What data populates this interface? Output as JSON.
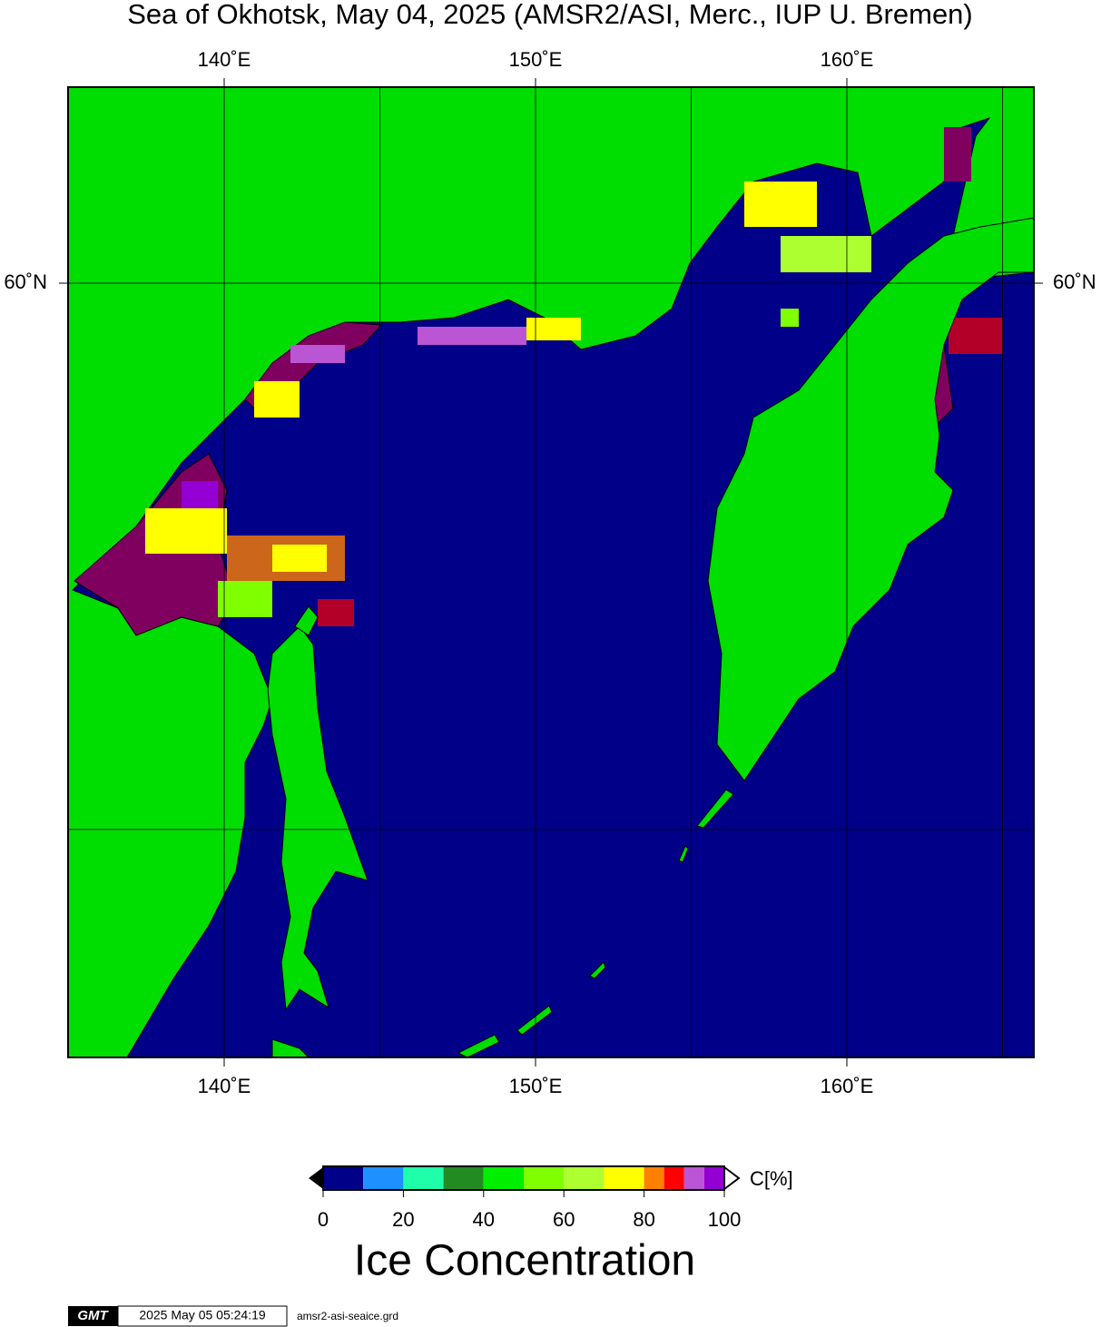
{
  "title": "Sea of Okhotsk, May 04, 2025 (AMSR2/ASI, Merc., IUP U. Bremen)",
  "map": {
    "lon_gridlines": [
      140,
      145,
      150,
      155,
      160,
      165
    ],
    "lat_gridlines": [
      50,
      60
    ],
    "lon_ticks": [
      {
        "value": 140,
        "label": "140˚E"
      },
      {
        "value": 150,
        "label": "150˚E"
      },
      {
        "value": 160,
        "label": "160˚E"
      }
    ],
    "lat_ticks": [
      {
        "value": 60,
        "label": "60˚N"
      }
    ]
  },
  "colorbar": {
    "unit_label": "C[%]",
    "title": "Ice Concentration",
    "ticks": [
      0,
      20,
      40,
      60,
      80,
      100
    ],
    "bins": [
      0,
      10,
      20,
      30,
      40,
      50,
      60,
      70,
      80,
      85,
      90,
      95,
      100
    ],
    "colors": [
      "#000088",
      "#1e90ff",
      "#1fffaa",
      "#228b22",
      "#00ee00",
      "#7fff00",
      "#adff2f",
      "#ffff00",
      "#ff8000",
      "#ff0000",
      "#ba55d3",
      "#9400d3"
    ]
  },
  "footer": {
    "logo": "GMT",
    "timestamp": "2025 May 05 05:24:19",
    "file": "amsr2-asi-seaice.grd"
  }
}
